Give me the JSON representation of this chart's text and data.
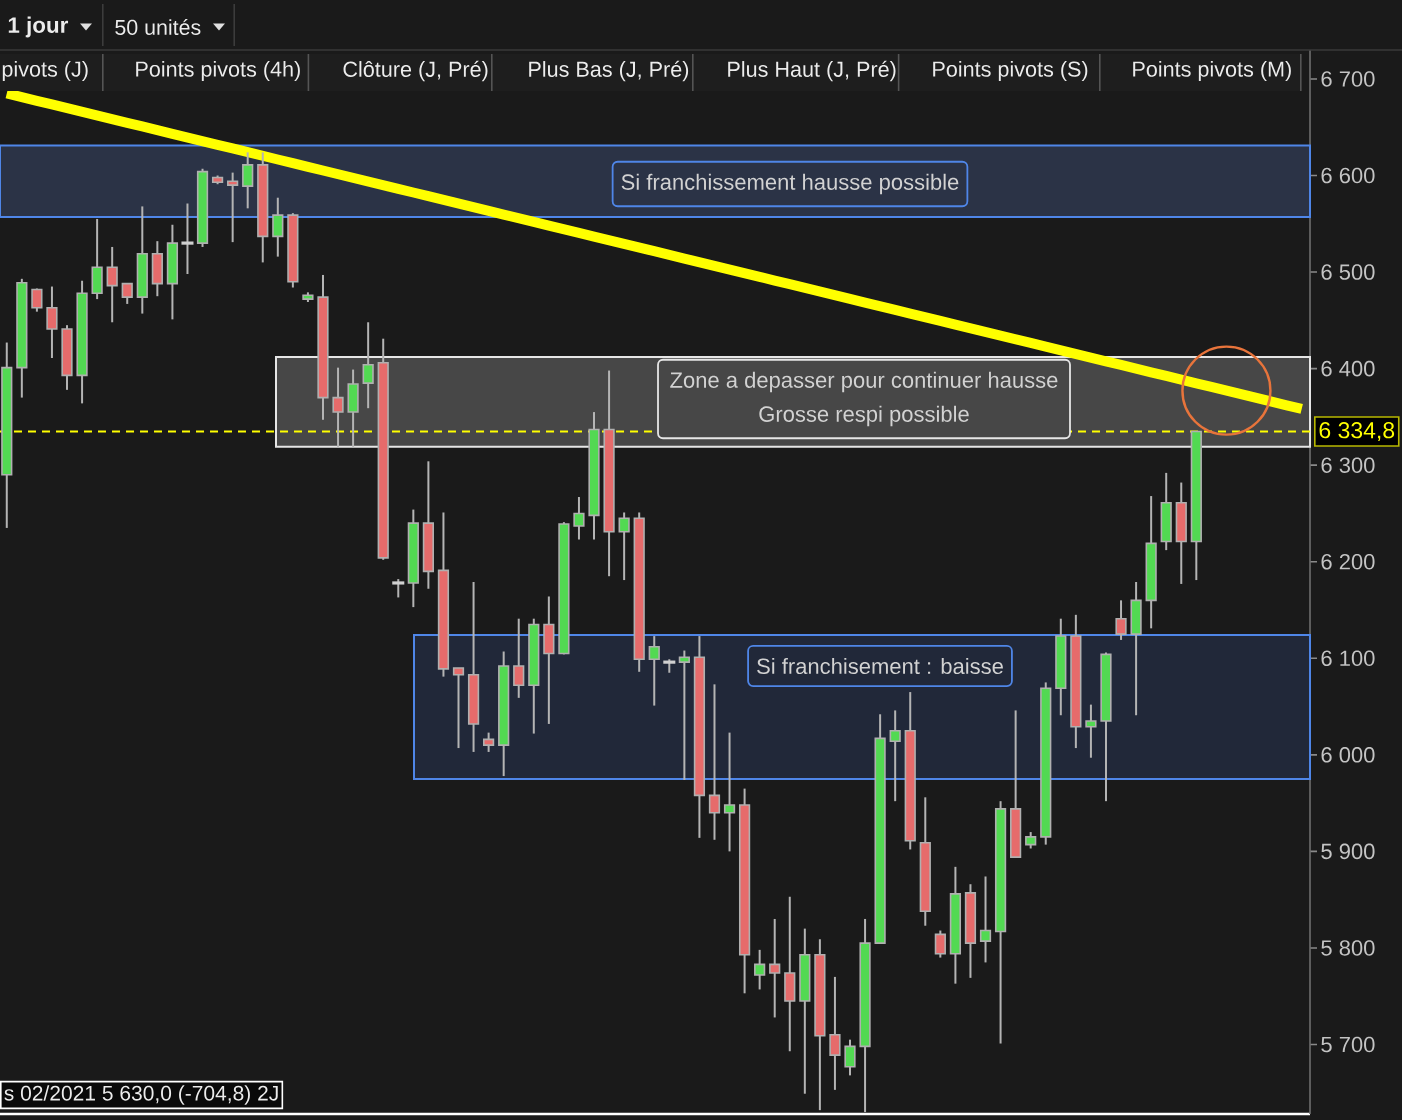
{
  "chart_data": {
    "type": "candlestick",
    "categories": [
      null,
      null,
      null,
      null,
      null,
      null,
      null,
      null,
      null,
      null,
      null,
      null,
      null,
      null,
      null,
      null,
      null,
      null,
      null,
      null,
      null,
      null,
      null,
      null,
      null,
      null,
      null,
      null,
      null,
      null,
      null,
      null,
      null,
      null,
      null,
      null,
      null,
      null,
      null,
      null,
      null,
      null,
      null,
      null,
      null,
      null,
      null,
      null,
      null,
      null,
      null,
      null,
      null,
      null,
      null,
      null,
      null,
      null,
      null,
      null,
      null,
      null,
      null,
      null,
      null,
      null,
      null,
      null,
      null,
      null,
      null,
      null,
      null,
      null,
      null,
      null,
      null,
      null,
      null,
      null,
      null,
      null,
      null,
      null,
      null,
      null,
      null
    ],
    "ohlc": [
      [
        6290,
        6427,
        6235,
        6401
      ],
      [
        6401,
        6493,
        6370,
        6489
      ],
      [
        6482,
        6483,
        6459,
        6463
      ],
      [
        6463,
        6485,
        6411,
        6441
      ],
      [
        6441,
        6445,
        6378,
        6393
      ],
      [
        6393,
        6491,
        6364,
        6478
      ],
      [
        6478,
        6555,
        6472,
        6505
      ],
      [
        6505,
        6526,
        6448,
        6486
      ],
      [
        6488,
        6488,
        6467,
        6474
      ],
      [
        6474,
        6568,
        6457,
        6519
      ],
      [
        6519,
        6532,
        6475,
        6488
      ],
      [
        6488,
        6549,
        6451,
        6530
      ],
      [
        6530,
        6571,
        6498,
        6530
      ],
      [
        6530,
        6607,
        6526,
        6604
      ],
      [
        6598,
        6600,
        6591,
        6593
      ],
      [
        6594,
        6603,
        6531,
        6590
      ],
      [
        6589,
        6624,
        6566,
        6611
      ],
      [
        6611,
        6624,
        6510,
        6537
      ],
      [
        6537,
        6577,
        6516,
        6559
      ],
      [
        6559,
        6561,
        6484,
        6490
      ],
      [
        6472,
        6479,
        6469,
        6476
      ],
      [
        6474,
        6497,
        6347,
        6370
      ],
      [
        6370,
        6401,
        6319,
        6355
      ],
      [
        6355,
        6399,
        6319,
        6384
      ],
      [
        6385,
        6448,
        6359,
        6404
      ],
      [
        6406,
        6431,
        6202,
        6204
      ],
      [
        6178,
        6182,
        6163,
        6178
      ],
      [
        6178,
        6254,
        6153,
        6240
      ],
      [
        6240,
        6304,
        6172,
        6190
      ],
      [
        6191,
        6251,
        6081,
        6089
      ],
      [
        6090,
        6090,
        6007,
        6083
      ],
      [
        6083,
        6179,
        6003,
        6032
      ],
      [
        6016,
        6023,
        6003,
        6010
      ],
      [
        6010,
        6107,
        5978,
        6092
      ],
      [
        6092,
        6141,
        6059,
        6072
      ],
      [
        6072,
        6141,
        6022,
        6135
      ],
      [
        6135,
        6164,
        6032,
        6105
      ],
      [
        6105,
        6241,
        6104,
        6239
      ],
      [
        6237,
        6267,
        6223,
        6250
      ],
      [
        6248,
        6355,
        6223,
        6337
      ],
      [
        6337,
        6398,
        6185,
        6231
      ],
      [
        6231,
        6251,
        6181,
        6245
      ],
      [
        6245,
        6251,
        6086,
        6099
      ],
      [
        6099,
        6123,
        6051,
        6112
      ],
      [
        6096,
        6099,
        6085,
        6096
      ],
      [
        6096,
        6108,
        5974,
        6101
      ],
      [
        6101,
        6123,
        5914,
        5958
      ],
      [
        5958,
        6073,
        5912,
        5940
      ],
      [
        5940,
        6023,
        5900,
        5948
      ],
      [
        5948,
        5965,
        5753,
        5793
      ],
      [
        5772,
        5798,
        5757,
        5783
      ],
      [
        5783,
        5830,
        5728,
        5774
      ],
      [
        5774,
        5853,
        5693,
        5745
      ],
      [
        5745,
        5820,
        5649,
        5793
      ],
      [
        5793,
        5809,
        5632,
        5709
      ],
      [
        5710,
        5770,
        5653,
        5689
      ],
      [
        5677,
        5705,
        5668,
        5698
      ],
      [
        5698,
        5830,
        5630,
        5805
      ],
      [
        5805,
        6042,
        5805,
        6017
      ],
      [
        6014,
        6046,
        5952,
        6025
      ],
      [
        6025,
        6065,
        5902,
        5911
      ],
      [
        5909,
        5956,
        5823,
        5838
      ],
      [
        5814,
        5818,
        5790,
        5794
      ],
      [
        5794,
        5884,
        5763,
        5856
      ],
      [
        5857,
        5866,
        5769,
        5805
      ],
      [
        5807,
        5874,
        5785,
        5818
      ],
      [
        5817,
        5952,
        5701,
        5944
      ],
      [
        5944,
        6046,
        5894,
        5894
      ],
      [
        5907,
        5920,
        5903,
        5915
      ],
      [
        5915,
        6075,
        5907,
        6069
      ],
      [
        6069,
        6141,
        6041,
        6123
      ],
      [
        6123,
        6145,
        6007,
        6029
      ],
      [
        6029,
        6052,
        5997,
        6035
      ],
      [
        6035,
        6106,
        5952,
        6104
      ],
      [
        6141,
        6160,
        6119,
        6125
      ],
      [
        6125,
        6179,
        6041,
        6160
      ],
      [
        6160,
        6268,
        6131,
        6219
      ],
      [
        6221,
        6292,
        6212,
        6261
      ],
      [
        6261,
        6282,
        6177,
        6221
      ],
      [
        6221,
        6334.8,
        6181,
        6334.8
      ],
      null,
      null,
      null,
      null,
      null,
      null,
      null
    ],
    "colors": [
      "#52d952",
      "#52d952",
      "#e66b6b",
      "#e66b6b",
      "#e66b6b",
      "#52d952",
      "#52d952",
      "#e66b6b",
      "#e66b6b",
      "#52d952",
      "#e66b6b",
      "#52d952",
      "#d0d0d0",
      "#52d952",
      "#e66b6b",
      "#e66b6b",
      "#52d952",
      "#e66b6b",
      "#52d952",
      "#e66b6b",
      "#52d952",
      "#e66b6b",
      "#e66b6b",
      "#52d952",
      "#52d952",
      "#e66b6b",
      "#d0d0d0",
      "#52d952",
      "#e66b6b",
      "#e66b6b",
      "#e66b6b",
      "#e66b6b",
      "#e66b6b",
      "#52d952",
      "#e66b6b",
      "#52d952",
      "#e66b6b",
      "#52d952",
      "#52d952",
      "#52d952",
      "#e66b6b",
      "#52d952",
      "#e66b6b",
      "#52d952",
      "#d0d0d0",
      "#52d952",
      "#e66b6b",
      "#e66b6b",
      "#52d952",
      "#e66b6b",
      "#52d952",
      "#e66b6b",
      "#e66b6b",
      "#52d952",
      "#e66b6b",
      "#e66b6b",
      "#52d952",
      "#52d952",
      "#52d952",
      "#52d952",
      "#e66b6b",
      "#e66b6b",
      "#e66b6b",
      "#52d952",
      "#e66b6b",
      "#52d952",
      "#52d952",
      "#e66b6b",
      "#52d952",
      "#52d952",
      "#52d952",
      "#e66b6b",
      "#52d952",
      "#52d952",
      "#e66b6b",
      "#52d952",
      "#52d952",
      "#52d952",
      "#e66b6b",
      "#52d952",
      null,
      null,
      null,
      null,
      null,
      null,
      null
    ],
    "series": [
      {
        "type": "line",
        "color": "#ffff00",
        "values": [
          6685,
          6681.2,
          6677.4,
          6673.6,
          6669.8,
          6666,
          6662.2,
          6658.4,
          6654.6,
          6650.8,
          6647,
          6643.2,
          6639.4,
          6635.6,
          6631.8,
          6628,
          6624.2,
          6620.4,
          6616.6,
          6612.8,
          6609,
          6605.2,
          6601.4,
          6597.6,
          6593.8,
          6590,
          6586.2,
          6582.4,
          6578.6,
          6574.8,
          6571,
          6567.2,
          6563.4,
          6559.6,
          6555.8,
          6552,
          6548.2,
          6544.4,
          6540.6,
          6536.8,
          6533,
          6529.2,
          6525.4,
          6521.6,
          6517.8,
          6514,
          6510.2,
          6506.4,
          6502.6,
          6498.8,
          6495,
          6491.2,
          6487.4,
          6483.6,
          6479.8,
          6476,
          6472.2,
          6468.4,
          6464.6,
          6460.8,
          6457,
          6453.2,
          6449.4,
          6445.6,
          6441.8,
          6438,
          6434.2,
          6430.4,
          6426.6,
          6422.8,
          6419,
          6415.2,
          6411.4,
          6407.6,
          6403.8,
          6400,
          6396.2,
          6392.4,
          6388.6,
          6384.8,
          6381,
          6377.2,
          6373.4,
          6369.6,
          6365.8,
          6362,
          6358.2
        ]
      }
    ],
    "ylim": [
      5628,
      6730
    ],
    "yticks": [
      {
        "value": 5700,
        "label": "5 700"
      },
      {
        "value": 5800,
        "label": "5 800"
      },
      {
        "value": 5900,
        "label": "5 900"
      },
      {
        "value": 6000,
        "label": "6 000"
      },
      {
        "value": 6100,
        "label": "6 100"
      },
      {
        "value": 6200,
        "label": "6 200"
      },
      {
        "value": 6300,
        "label": "6 300"
      },
      {
        "value": 6400,
        "label": "6 400"
      },
      {
        "value": 6500,
        "label": "6 500"
      },
      {
        "value": 6600,
        "label": "6 600"
      },
      {
        "value": 6700,
        "label": "6 700"
      }
    ],
    "tick_labels": "y",
    "ref_lines": [
      {
        "axis": "y",
        "value": 6334.8,
        "label": "6 334,8",
        "color": "#ffff00",
        "line_style": "dashed"
      }
    ],
    "bands": [
      {
        "axis": "y",
        "from": 6557,
        "to": 6631,
        "label": "Si franchissement hausse possible",
        "color": "#2b3346"
      },
      {
        "axis": "y",
        "from": 6319,
        "to": 6412,
        "label": "Zone a depasser pour continuer hausse Grosse respi possible",
        "color": "#474747"
      },
      {
        "axis": "y",
        "from": 5975,
        "to": 6124,
        "label": "Si franchisement : baisse",
        "color": "#212839"
      }
    ],
    "annotations": [
      "1 jour",
      "50 unités",
      "pivots (J)",
      "Points pivots (4h)",
      "Clôture (J, Pré)",
      "Plus Bas (J, Pré)",
      "Plus Haut (J, Pré)",
      "Points pivots (S)",
      "Points pivots (M)",
      "s 02/2021 5 630,0 (-704,8) 2J"
    ]
  }
}
